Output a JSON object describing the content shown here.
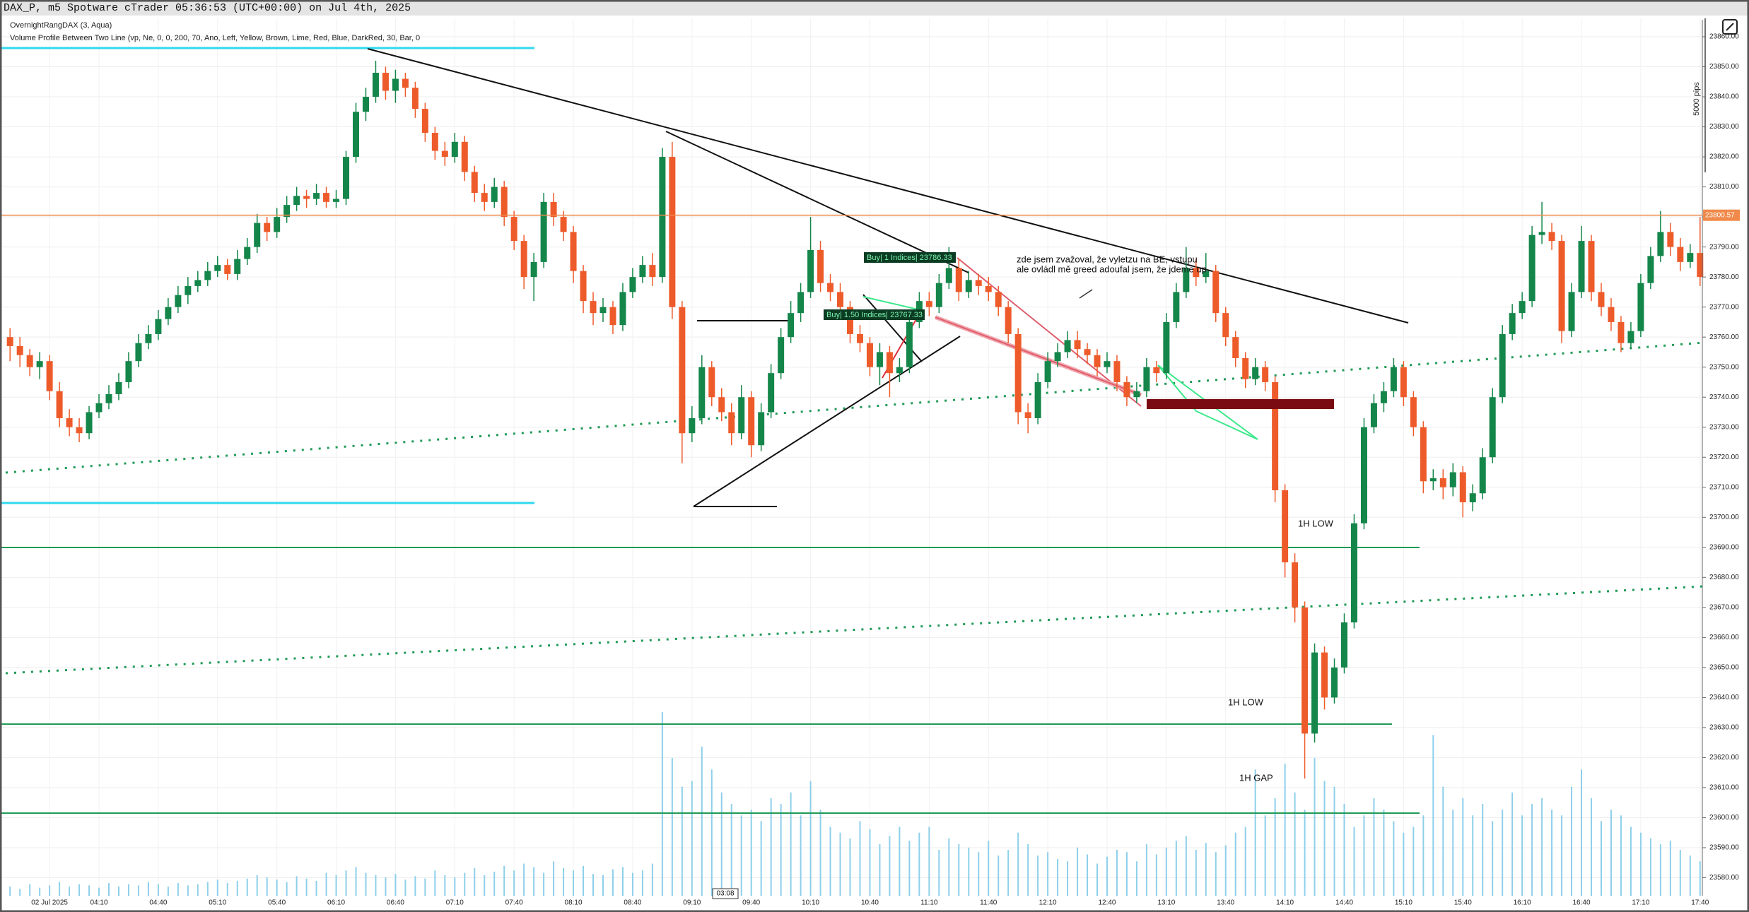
{
  "chart_data": {
    "type": "candlestick",
    "title": "DAX_P, m5 Spotware cTrader 05:36:53 (UTC+00:00) on Jul 4th, 2025",
    "indicators": [
      "OvernightRangDAX (3, Aqua)",
      "Volume Profile Between Two Line (vp, Ne, 0, 0, 200, 70, Ano, Left, Yellow, Brown, Lime, Red, Blue, DarkRed, 30, Bar, 0"
    ],
    "categories": [
      null,
      null,
      null,
      null,
      "02 Jul 2025",
      null,
      null,
      null,
      null,
      "04:10",
      null,
      null,
      null,
      null,
      null,
      "04:40",
      null,
      null,
      null,
      null,
      null,
      "05:10",
      null,
      null,
      null,
      null,
      null,
      "05:40",
      null,
      null,
      null,
      null,
      null,
      "06:10",
      null,
      null,
      null,
      null,
      null,
      "06:40",
      null,
      null,
      null,
      null,
      null,
      "07:10",
      null,
      null,
      null,
      null,
      null,
      "07:40",
      null,
      null,
      null,
      null,
      null,
      "08:10",
      null,
      null,
      null,
      null,
      null,
      "08:40",
      null,
      null,
      null,
      null,
      null,
      "09:10",
      null,
      null,
      null,
      null,
      null,
      "09:40",
      null,
      null,
      null,
      null,
      null,
      "10:10",
      null,
      null,
      null,
      null,
      null,
      "10:40",
      null,
      null,
      null,
      null,
      null,
      "11:10",
      null,
      null,
      null,
      null,
      null,
      "11:40",
      null,
      null,
      null,
      null,
      null,
      "12:10",
      null,
      null,
      null,
      null,
      null,
      "12:40",
      null,
      null,
      null,
      null,
      null,
      "13:10",
      null,
      null,
      null,
      null,
      null,
      "13:40",
      null,
      null,
      null,
      null,
      null,
      "14:10",
      null,
      null,
      null,
      null,
      null,
      "14:40",
      null,
      null,
      null,
      null,
      null,
      "15:10",
      null,
      null,
      null,
      null,
      null,
      "15:40",
      null,
      null,
      null,
      null,
      null,
      "16:10",
      null,
      null,
      null,
      null,
      null,
      "16:40",
      null,
      null,
      null,
      null,
      null,
      "17:10",
      null,
      null,
      null,
      null,
      null,
      "17:40"
    ],
    "open": [
      23760,
      23757,
      23754,
      23750,
      23752,
      23742,
      23733,
      23730,
      23728,
      23735,
      23738,
      23741,
      23745,
      23752,
      23758,
      23761,
      23766,
      23770,
      23774,
      23777,
      23779,
      23782,
      23784,
      23781,
      23786,
      23790,
      23798,
      23795,
      23800,
      23804,
      23807,
      23806,
      23808,
      23805,
      23806,
      23820,
      23835,
      23840,
      23848,
      23842,
      23846,
      23843,
      23836,
      23828,
      23822,
      23820,
      23825,
      23815,
      23808,
      23805,
      23810,
      23800,
      23792,
      23780,
      23785,
      23805,
      23800,
      23795,
      23782,
      23772,
      23768,
      23770,
      23764,
      23775,
      23780,
      23784,
      23780,
      23820,
      23770,
      23728,
      23733,
      23750,
      23740,
      23735,
      23728,
      23740,
      23724,
      23735,
      23748,
      23760,
      23768,
      23775,
      23789,
      23778,
      23775,
      23770,
      23761,
      23758,
      23750,
      23755,
      23748,
      23750,
      23765,
      23772,
      23770,
      23778,
      23783,
      23775,
      23779,
      23777,
      23775,
      23770,
      23761,
      23735,
      23733,
      23745,
      23752,
      23755,
      23759,
      23756,
      23754,
      23750,
      23752,
      23745,
      23740,
      23742,
      23750,
      23748,
      23765,
      23775,
      23783,
      23780,
      23782,
      23768,
      23760,
      23753,
      23746,
      23750,
      23745,
      23709,
      23685,
      23670,
      23628,
      23655,
      23640,
      23650,
      23665,
      23698,
      23730,
      23738,
      23742,
      23750,
      23740,
      23730,
      23712,
      23713,
      23710,
      23715,
      23705,
      23708,
      23720,
      23740,
      23761,
      23768,
      23772,
      23794,
      23795,
      23792,
      23762,
      23775,
      23792,
      23775,
      23770,
      23765,
      23758,
      23762,
      23778,
      23787,
      23795,
      23790,
      23785,
      23788
    ],
    "high": [
      23763,
      23760,
      23756,
      23755,
      23754,
      23745,
      23736,
      23733,
      23737,
      23741,
      23744,
      23748,
      23755,
      23761,
      23764,
      23769,
      23773,
      23777,
      23780,
      23782,
      23785,
      23787,
      23786,
      23789,
      23793,
      23801,
      23800,
      23803,
      23807,
      23810,
      23809,
      23811,
      23810,
      23809,
      23822,
      23838,
      23843,
      23852,
      23850,
      23849,
      23848,
      23845,
      23838,
      23830,
      23825,
      23828,
      23827,
      23817,
      23811,
      23813,
      23812,
      23802,
      23794,
      23788,
      23808,
      23808,
      23802,
      23797,
      23784,
      23775,
      23773,
      23772,
      23778,
      23783,
      23787,
      23788,
      23823,
      23825,
      23772,
      23737,
      23754,
      23752,
      23743,
      23738,
      23744,
      23742,
      23738,
      23751,
      23763,
      23772,
      23778,
      23800,
      23792,
      23781,
      23778,
      23772,
      23764,
      23760,
      23758,
      23757,
      23753,
      23768,
      23775,
      23775,
      23781,
      23790,
      23786,
      23782,
      23781,
      23780,
      23777,
      23772,
      23763,
      23738,
      23748,
      23755,
      23758,
      23762,
      23762,
      23758,
      23756,
      23755,
      23754,
      23747,
      23745,
      23753,
      23752,
      23768,
      23778,
      23790,
      23786,
      23788,
      23784,
      23770,
      23762,
      23755,
      23753,
      23752,
      23747,
      23711,
      23688,
      23672,
      23658,
      23657,
      23653,
      23668,
      23701,
      23733,
      23741,
      23745,
      23753,
      23752,
      23742,
      23732,
      23716,
      23716,
      23718,
      23717,
      23711,
      23723,
      23743,
      23764,
      23771,
      23775,
      23797,
      23805,
      23798,
      23794,
      23778,
      23797,
      23794,
      23778,
      23773,
      23767,
      23765,
      23781,
      23790,
      23802,
      23798,
      23793,
      23791,
      23800
    ],
    "low": [
      23752,
      23750,
      23747,
      23746,
      23739,
      23730,
      23727,
      23725,
      23726,
      23733,
      23736,
      23739,
      23743,
      23750,
      23756,
      23759,
      23764,
      23768,
      23771,
      23775,
      23777,
      23780,
      23779,
      23779,
      23784,
      23788,
      23792,
      23793,
      23798,
      23802,
      23803,
      23804,
      23803,
      23803,
      23804,
      23818,
      23832,
      23838,
      23839,
      23838,
      23840,
      23833,
      23825,
      23819,
      23817,
      23818,
      23812,
      23805,
      23802,
      23803,
      23797,
      23789,
      23776,
      23772,
      23783,
      23797,
      23792,
      23778,
      23768,
      23764,
      23765,
      23761,
      23762,
      23773,
      23778,
      23777,
      23778,
      23766,
      23718,
      23725,
      23731,
      23737,
      23732,
      23724,
      23726,
      23720,
      23722,
      23733,
      23746,
      23758,
      23765,
      23773,
      23775,
      23772,
      23767,
      23758,
      23755,
      23747,
      23744,
      23740,
      23745,
      23748,
      23763,
      23767,
      23768,
      23776,
      23772,
      23773,
      23774,
      23772,
      23767,
      23758,
      23731,
      23728,
      23731,
      23743,
      23750,
      23753,
      23753,
      23751,
      23747,
      23748,
      23742,
      23737,
      23738,
      23740,
      23745,
      23746,
      23763,
      23773,
      23777,
      23778,
      23765,
      23757,
      23750,
      23743,
      23744,
      23742,
      23705,
      23680,
      23665,
      23613,
      23625,
      23636,
      23638,
      23648,
      23663,
      23696,
      23728,
      23735,
      23740,
      23737,
      23727,
      23708,
      23709,
      23706,
      23707,
      23700,
      23702,
      23706,
      23718,
      23738,
      23759,
      23766,
      23770,
      23791,
      23789,
      23758,
      23760,
      23773,
      23772,
      23767,
      23762,
      23755,
      23756,
      23760,
      23776,
      23785,
      23787,
      23782,
      23783,
      23777
    ],
    "close": [
      23757,
      23754,
      23750,
      23752,
      23742,
      23733,
      23730,
      23728,
      23735,
      23738,
      23741,
      23745,
      23752,
      23758,
      23761,
      23766,
      23770,
      23774,
      23777,
      23779,
      23782,
      23784,
      23781,
      23786,
      23790,
      23798,
      23795,
      23800,
      23804,
      23807,
      23806,
      23808,
      23805,
      23806,
      23820,
      23835,
      23840,
      23848,
      23842,
      23846,
      23843,
      23836,
      23828,
      23822,
      23820,
      23825,
      23815,
      23808,
      23805,
      23810,
      23800,
      23792,
      23780,
      23785,
      23805,
      23800,
      23795,
      23782,
      23772,
      23768,
      23770,
      23764,
      23775,
      23780,
      23784,
      23780,
      23820,
      23770,
      23728,
      23733,
      23750,
      23740,
      23735,
      23728,
      23740,
      23724,
      23735,
      23748,
      23760,
      23768,
      23775,
      23789,
      23778,
      23775,
      23770,
      23761,
      23758,
      23750,
      23755,
      23748,
      23750,
      23765,
      23772,
      23770,
      23778,
      23783,
      23775,
      23779,
      23777,
      23775,
      23770,
      23761,
      23735,
      23733,
      23745,
      23752,
      23755,
      23759,
      23756,
      23754,
      23750,
      23752,
      23745,
      23740,
      23742,
      23750,
      23748,
      23765,
      23775,
      23783,
      23780,
      23782,
      23768,
      23760,
      23753,
      23746,
      23750,
      23745,
      23709,
      23685,
      23670,
      23628,
      23655,
      23640,
      23650,
      23665,
      23698,
      23730,
      23738,
      23742,
      23750,
      23740,
      23730,
      23712,
      23713,
      23710,
      23715,
      23705,
      23708,
      23720,
      23740,
      23761,
      23768,
      23772,
      23794,
      23795,
      23792,
      23762,
      23775,
      23792,
      23775,
      23770,
      23765,
      23758,
      23762,
      23778,
      23787,
      23795,
      23790,
      23785,
      23788,
      23780
    ],
    "volume": [
      8,
      6,
      10,
      7,
      9,
      12,
      8,
      10,
      9,
      7,
      11,
      8,
      10,
      9,
      12,
      10,
      8,
      11,
      9,
      10,
      12,
      14,
      11,
      13,
      15,
      18,
      16,
      14,
      12,
      17,
      15,
      13,
      20,
      18,
      22,
      25,
      20,
      18,
      16,
      19,
      14,
      17,
      15,
      22,
      18,
      16,
      20,
      24,
      18,
      21,
      26,
      22,
      28,
      25,
      20,
      30,
      24,
      22,
      26,
      19,
      18,
      23,
      25,
      20,
      22,
      28,
      160,
      120,
      95,
      100,
      130,
      110,
      90,
      80,
      70,
      75,
      65,
      85,
      80,
      90,
      70,
      100,
      75,
      60,
      55,
      50,
      65,
      58,
      45,
      52,
      60,
      48,
      55,
      60,
      40,
      50,
      45,
      42,
      38,
      48,
      35,
      40,
      55,
      45,
      35,
      38,
      32,
      30,
      42,
      36,
      28,
      34,
      40,
      38,
      30,
      45,
      36,
      42,
      48,
      52,
      40,
      46,
      38,
      44,
      55,
      60,
      110,
      70,
      85,
      115,
      90,
      75,
      120,
      100,
      95,
      80,
      60,
      70,
      85,
      75,
      65,
      55,
      60,
      70,
      140,
      95,
      75,
      85,
      70,
      80,
      65,
      75,
      90,
      70,
      80,
      85,
      75,
      70,
      95,
      110,
      85,
      65,
      75,
      70,
      60,
      55,
      50,
      45,
      48,
      40,
      35,
      30
    ],
    "up_color": "#14864a",
    "down_color": "#ee5b2b",
    "volume_color": "#8dcfea",
    "ylim": [
      23574,
      23860
    ],
    "yticks": [
      {
        "value": 23580,
        "label": "23580.00"
      },
      {
        "value": 23590,
        "label": "23590.00"
      },
      {
        "value": 23600,
        "label": "23600.00"
      },
      {
        "value": 23610,
        "label": "23610.00"
      },
      {
        "value": 23620,
        "label": "23620.00"
      },
      {
        "value": 23630,
        "label": "23630.00"
      },
      {
        "value": 23640,
        "label": "23640.00"
      },
      {
        "value": 23650,
        "label": "23650.00"
      },
      {
        "value": 23660,
        "label": "23660.00"
      },
      {
        "value": 23670,
        "label": "23670.00"
      },
      {
        "value": 23680,
        "label": "23680.00"
      },
      {
        "value": 23690,
        "label": "23690.00"
      },
      {
        "value": 23700,
        "label": "23700.00"
      },
      {
        "value": 23710,
        "label": "23710.00"
      },
      {
        "value": 23720,
        "label": "23720.00"
      },
      {
        "value": 23730,
        "label": "23730.00"
      },
      {
        "value": 23740,
        "label": "23740.00"
      },
      {
        "value": 23750,
        "label": "23750.00"
      },
      {
        "value": 23760,
        "label": "23760.00"
      },
      {
        "value": 23770,
        "label": "23770.00"
      },
      {
        "value": 23780,
        "label": "23780.00"
      },
      {
        "value": 23790,
        "label": "23790.00"
      },
      {
        "value": 23800,
        "label": "23800.00"
      },
      {
        "value": 23810,
        "label": "23810.00"
      },
      {
        "value": 23820,
        "label": "23820.00"
      },
      {
        "value": 23830,
        "label": "23830.00"
      },
      {
        "value": 23840,
        "label": "23840.00"
      },
      {
        "value": 23850,
        "label": "23850.00"
      },
      {
        "value": 23860,
        "label": "23860.00"
      }
    ],
    "grid": true,
    "price_line": {
      "value": 23800.57,
      "label": "23800.57",
      "color": "#f0894a"
    },
    "axis_note": "5000 pips",
    "countdown": "03:08",
    "annotations": [
      "1H LOW",
      "1H LOW",
      "1H GAP"
    ],
    "note": [
      "zde jsem zvažoval, že vyletzu na BE, vstupu",
      "ale ovládl mě greed adoufal jsem, že jdeme up"
    ],
    "trades": [
      "Buy| 1 Indices| 23786.33",
      "Buy| 1.50 Indices| 23767.33"
    ]
  }
}
